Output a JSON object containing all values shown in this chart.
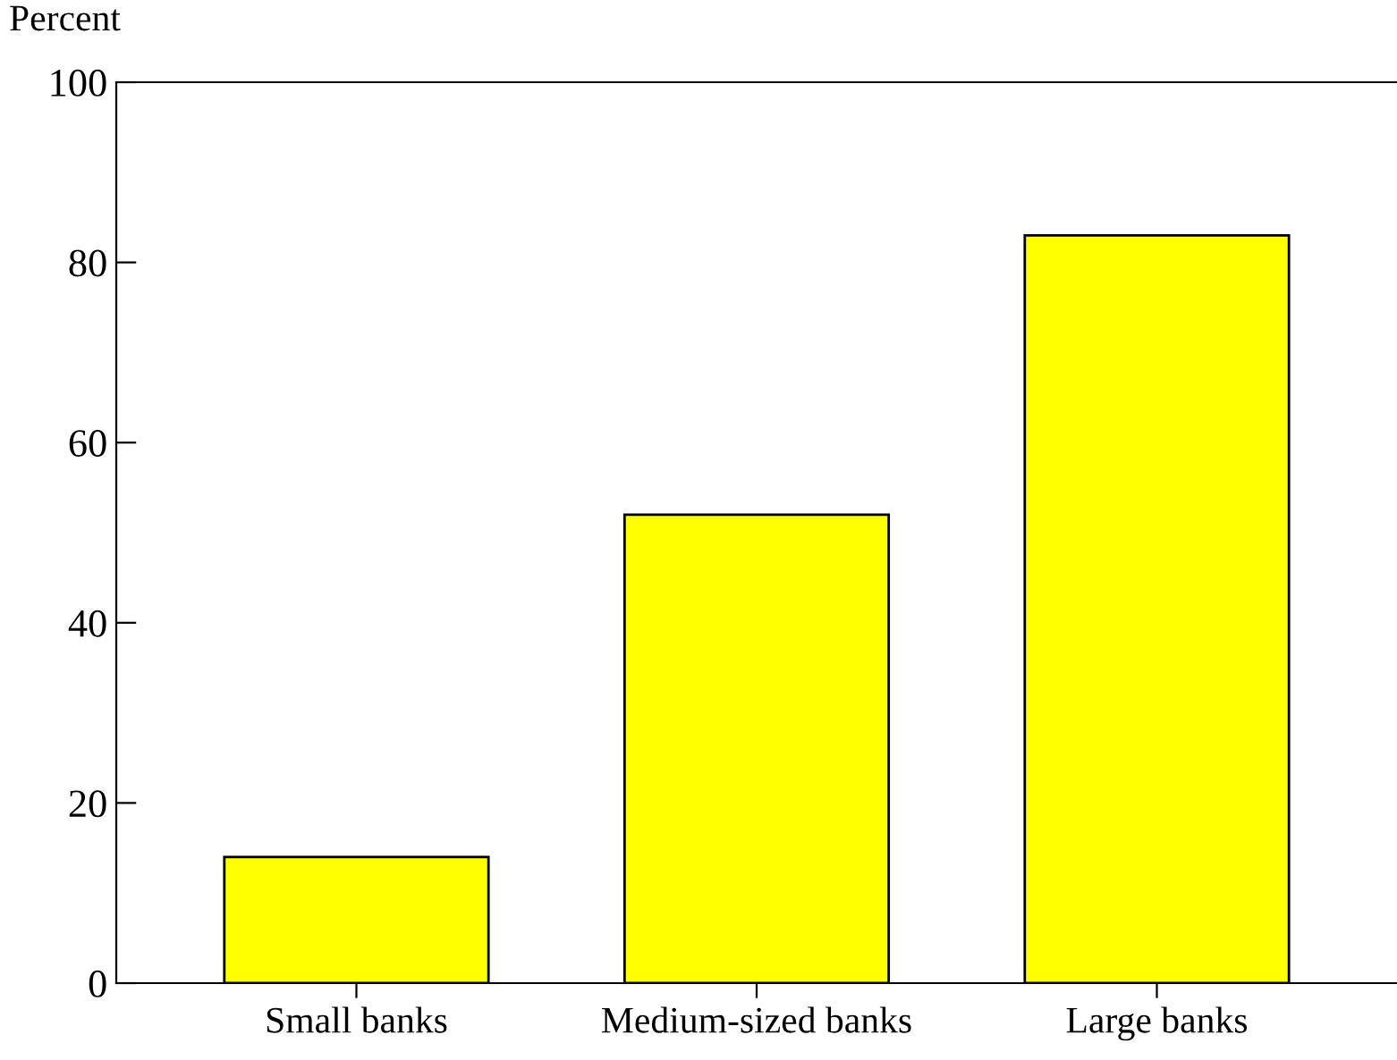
{
  "chart_data": {
    "type": "bar",
    "ylabel": "Percent",
    "categories": [
      "Small banks",
      "Medium-sized banks",
      "Large banks"
    ],
    "values": [
      14,
      52,
      83
    ],
    "color": "#ffff00",
    "ylim": [
      0,
      100
    ],
    "yticks": [
      0,
      20,
      40,
      60,
      80,
      100
    ],
    "grid": false,
    "legend": false
  }
}
